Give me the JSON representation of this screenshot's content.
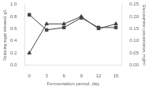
{
  "chart_data": {
    "type": "line",
    "x": [
      0,
      3,
      6,
      9,
      12,
      15
    ],
    "xlabel": "Fermentation period, day",
    "ylabel": "Reducing sugar released, g/L",
    "y2label": "Glucosamine concentration, mg/ml",
    "xlim": [
      -0.8,
      16.0
    ],
    "xticks": [
      0,
      3,
      6,
      9,
      12,
      15
    ],
    "ylim": [
      0,
      1.0
    ],
    "yticks": [
      {
        "value": 0,
        "label": "0.0"
      },
      {
        "value": 0.2,
        "label": "0.2"
      },
      {
        "value": 0.4,
        "label": "0.4"
      },
      {
        "value": 0.6,
        "label": "0.6"
      },
      {
        "value": 0.8,
        "label": "0.8"
      },
      {
        "value": 1.0,
        "label": "1.0"
      }
    ],
    "y2lim": [
      0,
      0.25
    ],
    "y2ticks": [
      {
        "value": 0,
        "label": "0.00"
      },
      {
        "value": 0.05,
        "label": "0.05"
      },
      {
        "value": 0.1,
        "label": "0.10"
      },
      {
        "value": 0.15,
        "label": "0.15"
      },
      {
        "value": 0.2,
        "label": "0.20"
      },
      {
        "value": 0.25,
        "label": "0.25"
      }
    ],
    "grid": false,
    "series": [
      {
        "values": [
          0.83,
          0.58,
          0.62,
          0.78,
          0.62,
          0.62
        ],
        "color": "#444444",
        "marker": "square"
      },
      {
        "values": [
          0.05,
          0.17,
          0.17,
          0.2,
          0.15,
          0.17
        ],
        "color": "#444444",
        "marker": "triangle",
        "axis": "y2"
      }
    ]
  }
}
